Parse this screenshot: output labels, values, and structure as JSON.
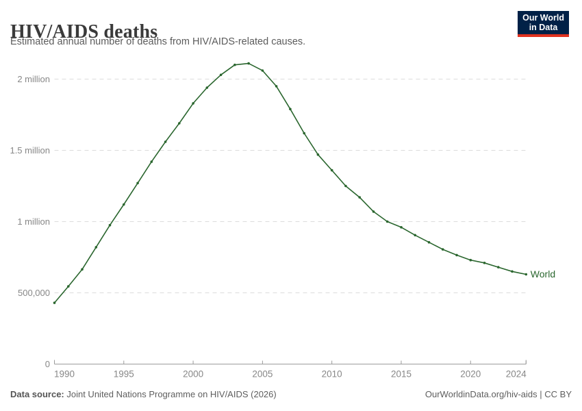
{
  "header": {
    "title": "HIV/AIDS deaths",
    "subtitle": "Estimated annual number of deaths from HIV/AIDS-related causes."
  },
  "logo": {
    "line1": "Our World",
    "line2": "in Data",
    "bg_color": "#002147",
    "accent_color": "#e0321f"
  },
  "chart_data": {
    "type": "line",
    "title": "HIV/AIDS deaths",
    "xlabel": "",
    "ylabel": "",
    "xlim": [
      1990,
      2024
    ],
    "ylim": [
      0,
      2150000
    ],
    "grid": "horizontal-dashed",
    "legend_position": "end-of-line-label",
    "x_ticks": [
      1990,
      1995,
      2000,
      2005,
      2010,
      2015,
      2020,
      2024
    ],
    "y_ticks": [
      {
        "value": 0,
        "label": "0"
      },
      {
        "value": 500000,
        "label": "500,000"
      },
      {
        "value": 1000000,
        "label": "1 million"
      },
      {
        "value": 1500000,
        "label": "1.5 million"
      },
      {
        "value": 2000000,
        "label": "2 million"
      }
    ],
    "series": [
      {
        "name": "World",
        "color": "#2a662e",
        "x": [
          1990,
          1991,
          1992,
          1993,
          1994,
          1995,
          1996,
          1997,
          1998,
          1999,
          2000,
          2001,
          2002,
          2003,
          2004,
          2005,
          2006,
          2007,
          2008,
          2009,
          2010,
          2011,
          2012,
          2013,
          2014,
          2015,
          2016,
          2017,
          2018,
          2019,
          2020,
          2021,
          2022,
          2023,
          2024
        ],
        "values": [
          430000,
          545000,
          665000,
          820000,
          975000,
          1120000,
          1270000,
          1420000,
          1560000,
          1690000,
          1830000,
          1940000,
          2030000,
          2100000,
          2110000,
          2060000,
          1950000,
          1790000,
          1620000,
          1470000,
          1360000,
          1250000,
          1170000,
          1070000,
          1000000,
          960000,
          905000,
          855000,
          805000,
          765000,
          730000,
          710000,
          680000,
          650000,
          630000
        ]
      }
    ],
    "axis_color": "#9a9a9a",
    "gridline_color": "#dcdcdc",
    "tick_label_color": "#878787"
  },
  "footer": {
    "source_label": "Data source:",
    "source_text": " Joint United Nations Programme on HIV/AIDS (2026)",
    "right_text": "OurWorldinData.org/hiv-aids | CC BY"
  }
}
